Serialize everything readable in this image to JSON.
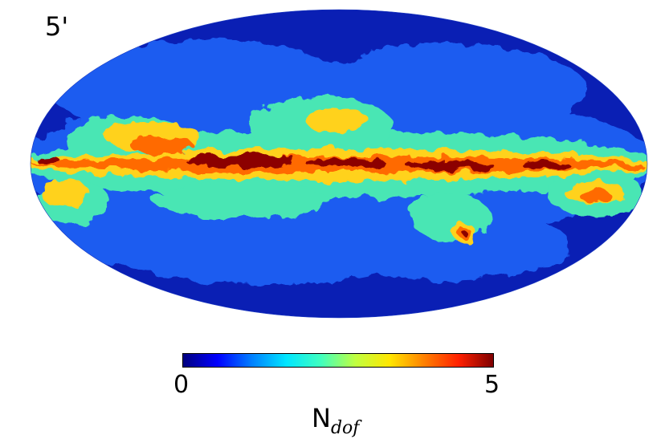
{
  "map": {
    "projection": "mollweide",
    "resolution_label": "5'",
    "colormap": [
      "#00007f",
      "#0000ff",
      "#0080ff",
      "#00e6ff",
      "#40ffbf",
      "#c0ff40",
      "#ffe600",
      "#ff8000",
      "#ff2000",
      "#7f0000"
    ],
    "colors": {
      "background_level": "#0a1fb4",
      "low_level": "#1c5cf0",
      "mid_level": "#48e6b4",
      "high_level": "#ffd21e",
      "very_high_level": "#ff6a00",
      "peak_level": "#8c0000"
    }
  },
  "colorbar": {
    "min_label": "0",
    "max_label": "5",
    "quantity_main": "N",
    "quantity_sub": "dof"
  }
}
